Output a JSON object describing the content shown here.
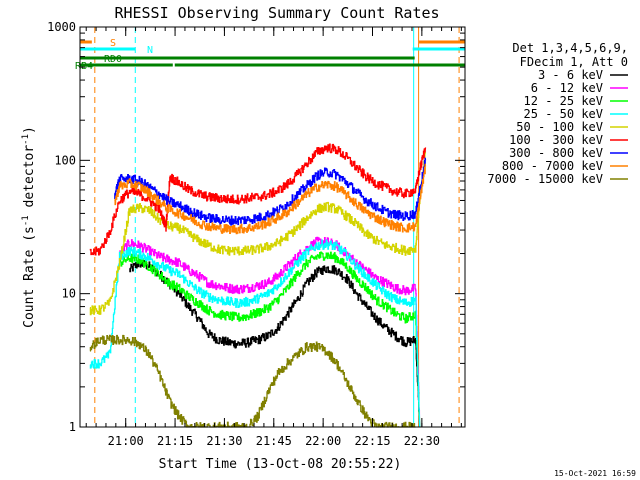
{
  "chart_data": {
    "type": "line",
    "title": "RHESSI Observing Summary Count Rates",
    "xlabel": "Start Time (13-Oct-08 20:55:22)",
    "ylabel": "Count Rate (s",
    "ylabel_sup": "-1",
    "ylabel_tail": " detector",
    "ylabel_tail_sup": "-1",
    "ylabel_close": ")",
    "y_scale": "log",
    "ylim": [
      1,
      1000
    ],
    "xlim_minutes": [
      0,
      39
    ],
    "y_ticks": [
      {
        "value": 1,
        "label": "1"
      },
      {
        "value": 10,
        "label": "10"
      },
      {
        "value": 100,
        "label": "100"
      },
      {
        "value": 1000,
        "label": "1000"
      }
    ],
    "x_ticks": [
      {
        "minute": 4.63,
        "label": "21:00"
      },
      {
        "minute": 9.63,
        "label": "21:15"
      },
      {
        "minute": 14.63,
        "label": "21:30"
      },
      {
        "minute": 19.63,
        "label": "21:45"
      },
      {
        "minute": 24.63,
        "label": "22:00"
      },
      {
        "minute": 29.63,
        "label": "22:15"
      },
      {
        "minute": 34.63,
        "label": "22:30"
      }
    ],
    "legend": {
      "position": "right",
      "header": [
        "Det 1,3,4,5,6,9,",
        "FDecim 1, Att 0"
      ],
      "entries": [
        {
          "label": "3 - 6 keV",
          "color": "#000000"
        },
        {
          "label": "6 - 12 keV",
          "color": "#ff00ff"
        },
        {
          "label": "12 - 25 keV",
          "color": "#00ff00"
        },
        {
          "label": "25 - 50 keV",
          "color": "#00ffff"
        },
        {
          "label": "50 - 100 keV",
          "color": "#d4d400"
        },
        {
          "label": "100 - 300 keV",
          "color": "#ff0000"
        },
        {
          "label": "300 - 800 keV",
          "color": "#0000ff"
        },
        {
          "label": "800 - 7000 keV",
          "color": "#ff8000"
        },
        {
          "label": "7000 - 15000 keV",
          "color": "#808000"
        }
      ]
    },
    "flags": [
      {
        "label": "S",
        "color": "#ff8000",
        "segments": [
          [
            0,
            1.2
          ],
          [
            34.3,
            39
          ]
        ]
      },
      {
        "label": "N",
        "color": "#00ffff",
        "segments": [
          [
            0,
            5.6
          ],
          [
            33.7,
            39
          ]
        ]
      },
      {
        "label": "RD0",
        "color": "#008000",
        "segments": [
          [
            0,
            33.9
          ]
        ]
      },
      {
        "label": "RB4",
        "color": "#008000",
        "segments": [
          [
            0,
            9.4
          ],
          [
            9.6,
            39
          ]
        ]
      }
    ],
    "vlines": [
      {
        "minute": 0.0,
        "color": "#00ffff",
        "style": "solid"
      },
      {
        "minute": 1.5,
        "color": "#ff8000",
        "style": "dashed"
      },
      {
        "minute": 5.6,
        "color": "#00ffff",
        "style": "dashed"
      },
      {
        "minute": 33.8,
        "color": "#00ffff",
        "style": "solid"
      },
      {
        "minute": 34.3,
        "color": "#ff8000",
        "style": "solid"
      },
      {
        "minute": 38.4,
        "color": "#ff8000",
        "style": "dashed"
      }
    ],
    "series": [
      {
        "name": "3 - 6 keV",
        "color": "#000000",
        "x": [
          2,
          4,
          5,
          6,
          7,
          8,
          9,
          10,
          11,
          12,
          13,
          14,
          15,
          16,
          17,
          18,
          19,
          20,
          21,
          22,
          23,
          24,
          25,
          26,
          27,
          28,
          29,
          30,
          31,
          32,
          33,
          34,
          34.4
        ],
        "values": [
          null,
          null,
          15,
          17,
          16,
          14,
          12,
          10,
          8,
          6.5,
          5,
          4.5,
          4.3,
          4.2,
          4.3,
          4.5,
          4.8,
          5.5,
          7,
          9,
          12,
          14.5,
          15.5,
          15,
          13,
          10,
          8,
          6.5,
          5.5,
          4.8,
          4.3,
          4.5,
          1
        ]
      },
      {
        "name": "6 - 12 keV",
        "color": "#ff00ff",
        "x": [
          2,
          4,
          5,
          6,
          7,
          8,
          9,
          10,
          11,
          12,
          13,
          14,
          15,
          16,
          17,
          18,
          19,
          20,
          21,
          22,
          23,
          24,
          25,
          26,
          27,
          28,
          29,
          30,
          31,
          32,
          33,
          34,
          34.4
        ],
        "values": [
          null,
          20,
          24,
          23,
          21,
          19,
          18,
          17,
          15,
          13.5,
          12,
          11.5,
          11,
          10.8,
          11,
          11.5,
          12,
          13.5,
          16,
          19,
          22,
          24.5,
          24.5,
          23,
          20,
          17,
          15,
          13,
          12,
          11,
          10.5,
          11,
          1
        ]
      },
      {
        "name": "12 - 25 keV",
        "color": "#00ff00",
        "x": [
          2,
          4,
          5,
          6,
          7,
          8,
          9,
          10,
          11,
          12,
          13,
          14,
          15,
          16,
          17,
          18,
          19,
          20,
          21,
          22,
          23,
          24,
          25,
          26,
          27,
          28,
          29,
          30,
          31,
          32,
          33,
          34,
          34.4
        ],
        "values": [
          null,
          17,
          18.5,
          18,
          16,
          14,
          12,
          11,
          9.5,
          8.5,
          7.5,
          7,
          6.8,
          6.6,
          6.8,
          7.2,
          7.8,
          9,
          11,
          14,
          17,
          19,
          19.5,
          18.5,
          16,
          13,
          11,
          9,
          8,
          7,
          6.5,
          7,
          1
        ]
      },
      {
        "name": "25 - 50 keV",
        "color": "#00ffff",
        "x": [
          1,
          2,
          3,
          4,
          5,
          6,
          7,
          8,
          9,
          10,
          11,
          12,
          13,
          14,
          15,
          16,
          17,
          18,
          19,
          20,
          21,
          22,
          23,
          24,
          25,
          26,
          27,
          28,
          29,
          30,
          31,
          32,
          33,
          34,
          34.4
        ],
        "values": [
          3,
          3,
          3.5,
          19,
          21,
          20,
          18.5,
          16.5,
          15,
          14,
          12,
          10.5,
          9.5,
          9,
          8.7,
          8.5,
          8.7,
          9.2,
          10,
          11.5,
          14,
          17,
          20.5,
          23,
          23.5,
          22.5,
          19.5,
          16,
          13.5,
          11.5,
          10,
          9,
          8.5,
          9,
          1
        ]
      },
      {
        "name": "50 - 100 keV",
        "color": "#d4d400",
        "x": [
          1,
          2,
          3,
          4,
          5,
          6,
          7,
          8,
          9,
          10,
          11,
          12,
          13,
          14,
          15,
          16,
          17,
          18,
          19,
          20,
          21,
          22,
          23,
          24,
          25,
          26,
          27,
          28,
          29,
          30,
          31,
          32,
          33,
          34,
          34.4,
          35
        ],
        "values": [
          7.5,
          7.5,
          8.5,
          17,
          42,
          44,
          42,
          36,
          32,
          31,
          28,
          25,
          23,
          21.5,
          21,
          21,
          21,
          21.5,
          22.5,
          24,
          27,
          31,
          37,
          43,
          45,
          43,
          38,
          33,
          28,
          25,
          23,
          22,
          21,
          22,
          50,
          115
        ]
      },
      {
        "name": "100 - 300 keV",
        "color": "#ff0000",
        "x": [
          1,
          2,
          3,
          4,
          5,
          6,
          7,
          8,
          8.7,
          9.1,
          10,
          11,
          12,
          13,
          14,
          15,
          16,
          17,
          18,
          19,
          20,
          21,
          22,
          23,
          24,
          25,
          26,
          27,
          28,
          29,
          30,
          31,
          32,
          33,
          34,
          34.4,
          35
        ],
        "values": [
          20,
          21,
          29,
          50,
          58,
          56,
          50,
          43,
          32,
          75,
          68,
          60,
          56,
          53,
          52,
          51,
          51,
          52,
          53,
          55,
          59,
          66,
          78,
          95,
          115,
          125,
          120,
          105,
          88,
          75,
          67,
          62,
          58,
          56,
          60,
          85,
          125
        ]
      },
      {
        "name": "300 - 800 keV",
        "color": "#0000ff",
        "x": [
          3.5,
          4,
          5,
          6,
          7,
          8,
          9,
          10,
          11,
          12,
          13,
          14,
          15,
          16,
          17,
          18,
          19,
          20,
          21,
          22,
          23,
          24,
          25,
          26,
          27,
          28,
          29,
          30,
          31,
          32,
          33,
          34,
          34.4,
          35
        ],
        "values": [
          55,
          72,
          73,
          70,
          63,
          56,
          49,
          46,
          42,
          39,
          37,
          36,
          35.5,
          35.5,
          36,
          37,
          39,
          42,
          47,
          55,
          65,
          77,
          82,
          78,
          68,
          58,
          50,
          45,
          41,
          39,
          38,
          40,
          60,
          100
        ]
      },
      {
        "name": "800 - 7000 keV",
        "color": "#ff8000",
        "x": [
          3.5,
          4,
          5,
          6,
          7,
          8,
          9,
          10,
          11,
          12,
          13,
          14,
          15,
          16,
          17,
          18,
          19,
          20,
          21,
          22,
          23,
          24,
          25,
          26,
          27,
          28,
          29,
          30,
          31,
          32,
          33,
          34,
          34.4,
          35
        ],
        "values": [
          48,
          64,
          67,
          64,
          57,
          49,
          43,
          40,
          37,
          34,
          32,
          31,
          30.5,
          30.5,
          31,
          32,
          34,
          37,
          41,
          48,
          56,
          63,
          66,
          63,
          55,
          47,
          41,
          37,
          34,
          32,
          31,
          32,
          50,
          90
        ]
      },
      {
        "name": "7000 - 15000 keV",
        "color": "#808000",
        "x": [
          1,
          2,
          3,
          4,
          5,
          6,
          7,
          8,
          9,
          10,
          11,
          12,
          13,
          14,
          15,
          16,
          17,
          18,
          19,
          20,
          21,
          22,
          23,
          24,
          25,
          26,
          27,
          28,
          29,
          30,
          31,
          32,
          33,
          34
        ],
        "values": [
          4,
          4.5,
          4.5,
          4.5,
          4.5,
          4.2,
          3.5,
          2.5,
          1.6,
          1.2,
          1,
          1,
          1,
          1,
          1,
          1,
          1,
          1.2,
          1.8,
          2.5,
          3,
          3.5,
          4,
          4,
          3.7,
          3,
          2.2,
          1.6,
          1.2,
          1,
          1,
          1,
          1,
          1
        ]
      }
    ]
  },
  "footer": {
    "date": "15-Oct-2021 16:59"
  }
}
